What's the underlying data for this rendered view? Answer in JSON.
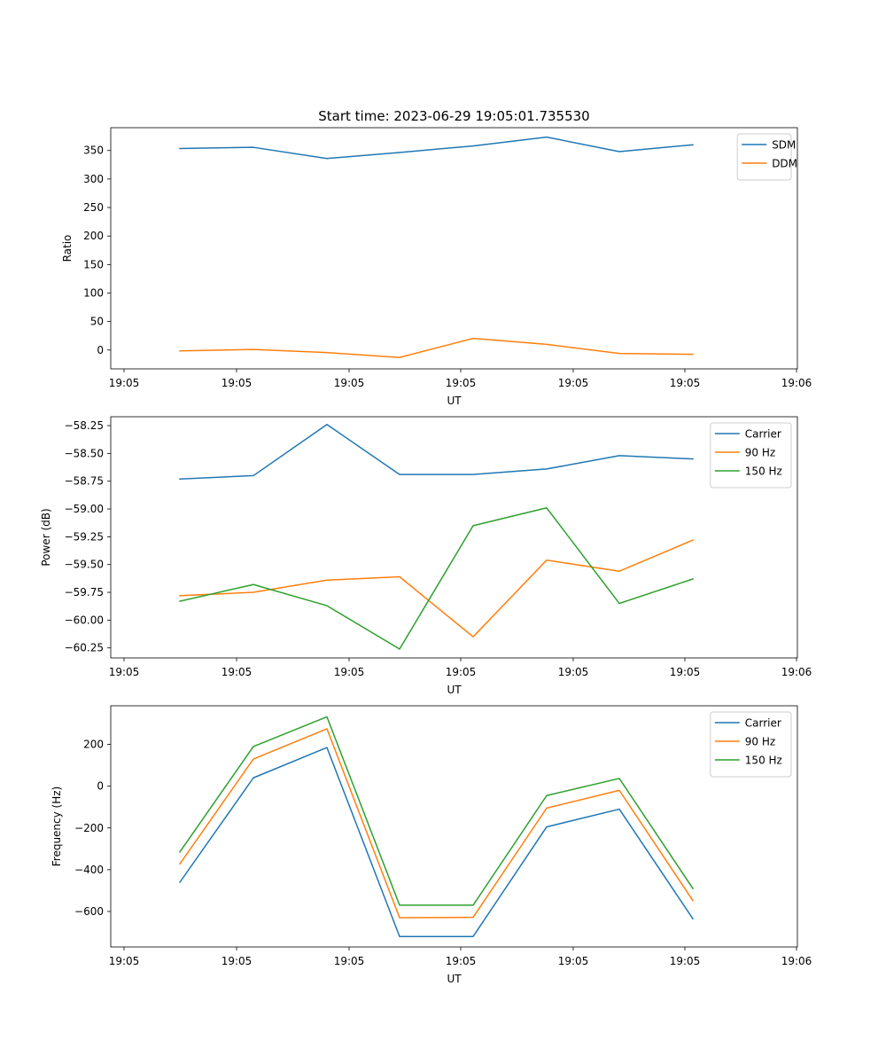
{
  "figure": {
    "title": "Start time: 2023-06-29 19:05:01.735530"
  },
  "colors": {
    "blue": "#1f77b4",
    "orange": "#ff7f0e",
    "green": "#2ca02c"
  },
  "chart_data": [
    {
      "type": "line",
      "title": "Start time: 2023-06-29 19:05:01.735530",
      "xlabel": "UT",
      "ylabel": "Ratio",
      "x_tick_labels": [
        "19:05",
        "19:05",
        "19:05",
        "19:05",
        "19:05",
        "19:05",
        "19:06"
      ],
      "yticks": [
        0,
        50,
        100,
        150,
        200,
        250,
        300,
        350
      ],
      "ylim": [
        -33,
        390
      ],
      "grid": false,
      "legend_position": "top-right",
      "series": [
        {
          "name": "SDM",
          "color": "#1f77b4",
          "values": [
            353.5,
            355.5,
            336,
            346.5,
            358,
            373.5,
            348,
            360
          ]
        },
        {
          "name": "DDM",
          "color": "#ff7f0e",
          "values": [
            -1.5,
            1,
            -4.5,
            -13,
            20.5,
            10,
            -6,
            -7.5
          ]
        }
      ]
    },
    {
      "type": "line",
      "title": "",
      "xlabel": "UT",
      "ylabel": "Power (dB)",
      "x_tick_labels": [
        "19:05",
        "19:05",
        "19:05",
        "19:05",
        "19:05",
        "19:05",
        "19:06"
      ],
      "yticks": [
        -60.25,
        -60.0,
        -59.75,
        -59.5,
        -59.25,
        -59.0,
        -58.75,
        -58.5,
        -58.25
      ],
      "ytick_labels": [
        "−60.25",
        "−60.00",
        "−59.75",
        "−59.50",
        "−59.25",
        "−59.00",
        "−58.75",
        "−58.50",
        "−58.25"
      ],
      "ylim": [
        -60.34,
        -58.17
      ],
      "grid": false,
      "legend_position": "top-right",
      "series": [
        {
          "name": "Carrier",
          "color": "#1f77b4",
          "values": [
            -58.73,
            -58.7,
            -58.24,
            -58.69,
            -58.69,
            -58.64,
            -58.52,
            -58.55
          ]
        },
        {
          "name": "90 Hz",
          "color": "#ff7f0e",
          "values": [
            -59.78,
            -59.75,
            -59.64,
            -59.61,
            -60.15,
            -59.46,
            -59.56,
            -59.28
          ]
        },
        {
          "name": "150 Hz",
          "color": "#2ca02c",
          "values": [
            -59.83,
            -59.68,
            -59.87,
            -60.26,
            -59.15,
            -58.99,
            -59.85,
            -59.63
          ]
        }
      ]
    },
    {
      "type": "line",
      "title": "",
      "xlabel": "UT",
      "ylabel": "Frequency (Hz)",
      "x_tick_labels": [
        "19:05",
        "19:05",
        "19:05",
        "19:05",
        "19:05",
        "19:05",
        "19:06"
      ],
      "yticks": [
        -600,
        -400,
        -200,
        0,
        200
      ],
      "ytick_labels": [
        "−600",
        "−400",
        "−200",
        "0",
        "200"
      ],
      "ylim": [
        -770,
        385
      ],
      "grid": false,
      "legend_position": "top-right",
      "series": [
        {
          "name": "Carrier",
          "color": "#1f77b4",
          "values": [
            -460,
            40,
            185,
            -720,
            -720,
            -195,
            -110,
            -635
          ]
        },
        {
          "name": "90 Hz",
          "color": "#ff7f0e",
          "values": [
            -372,
            130,
            275,
            -630,
            -628,
            -105,
            -20,
            -548
          ]
        },
        {
          "name": "150 Hz",
          "color": "#2ca02c",
          "values": [
            -315,
            190,
            332,
            -570,
            -570,
            -45,
            37,
            -490
          ]
        }
      ]
    }
  ]
}
